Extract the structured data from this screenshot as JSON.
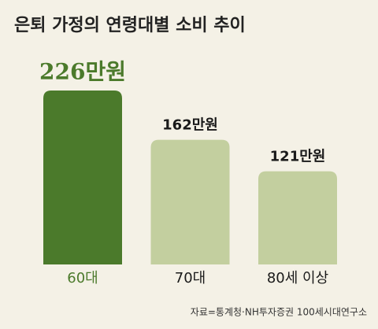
{
  "chart_data": {
    "type": "bar",
    "title": "은퇴 가정의 연령대별 소비 추이",
    "categories": [
      "60대",
      "70대",
      "80세 이상"
    ],
    "values": [
      226,
      162,
      121
    ],
    "value_labels": [
      "226만원",
      "162만원",
      "121만원"
    ],
    "colors": [
      "#4b7a2b",
      "#c3cf9f",
      "#c3cf9f"
    ],
    "source": "자료=통계청·NH투자증권 100세시대연구소"
  }
}
